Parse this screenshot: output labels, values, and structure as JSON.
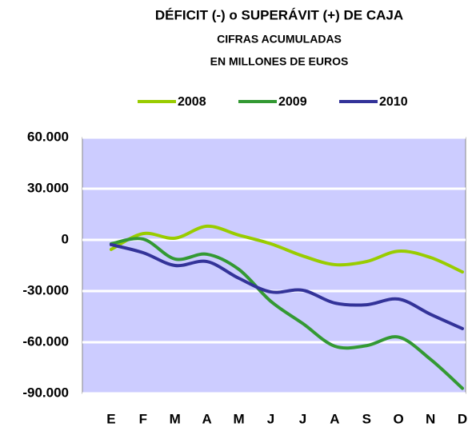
{
  "chart_data": {
    "type": "line",
    "title": "DÉFICIT (-) o SUPERÁVIT (+) DE CAJA",
    "subtitle": [
      "CIFRAS ACUMULADAS",
      "EN MILLONES DE EUROS"
    ],
    "categories": [
      "E",
      "F",
      "M",
      "A",
      "M",
      "J",
      "J",
      "A",
      "S",
      "O",
      "N",
      "D"
    ],
    "series": [
      {
        "name": "2008",
        "color": "#99cc00",
        "values": [
          -5600,
          3700,
          1000,
          8000,
          2800,
          -2300,
          -9400,
          -14500,
          -12700,
          -6600,
          -10300,
          -18800
        ]
      },
      {
        "name": "2009",
        "color": "#339933",
        "values": [
          -2300,
          500,
          -11200,
          -8400,
          -17300,
          -36000,
          -49000,
          -62300,
          -62000,
          -57000,
          -70000,
          -87000
        ]
      },
      {
        "name": "2010",
        "color": "#333399",
        "values": [
          -2800,
          -7500,
          -15000,
          -12700,
          -22500,
          -30500,
          -29500,
          -37000,
          -38000,
          -34700,
          -43600,
          -52000
        ]
      }
    ],
    "ylim": [
      -90000,
      60000
    ],
    "yticks": [
      {
        "value": -90000,
        "label": "-90.000"
      },
      {
        "value": -60000,
        "label": "-60.000"
      },
      {
        "value": -30000,
        "label": "-30.000"
      },
      0,
      {
        "value": 30000,
        "label": "30.000"
      },
      {
        "value": 60000,
        "label": "60.000"
      }
    ],
    "grid": true,
    "plot_background": "#ccccff",
    "legend": "top"
  }
}
